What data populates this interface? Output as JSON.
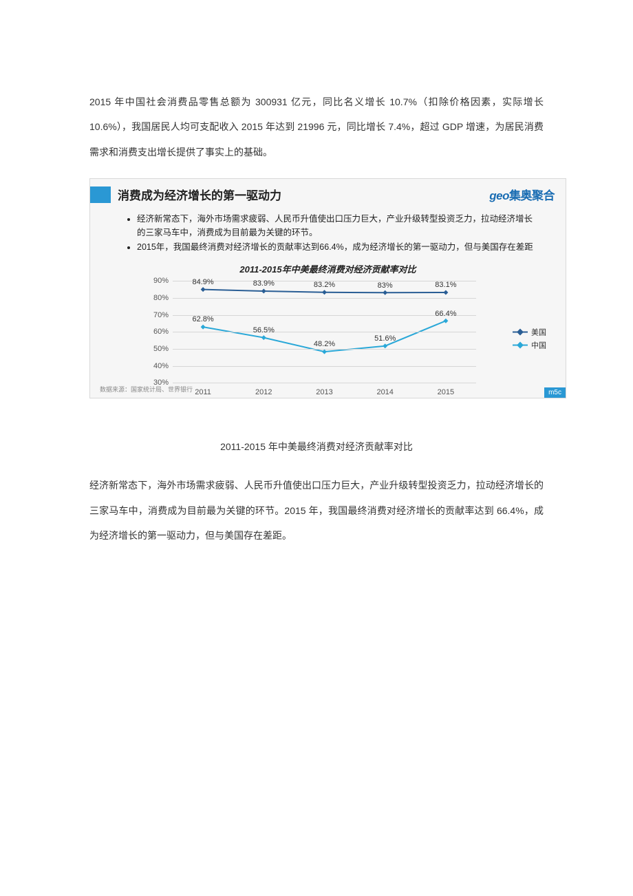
{
  "document": {
    "paragraph1": "2015 年中国社会消费品零售总额为 300931 亿元，同比名义增长 10.7%（扣除价格因素，实际增长 10.6%），我国居民人均可支配收入 2015 年达到 21996 元，同比增长 7.4%，超过 GDP 增速，为居民消费需求和消费支出增长提供了事实上的基础。",
    "figure_caption": "2011-2015 年中美最终消费对经济贡献率对比",
    "paragraph2": "经济新常态下，海外市场需求疲弱、人民币升值使出口压力巨大，产业升级转型投资乏力，拉动经济增长的三家马车中，消费成为目前最为关键的环节。2015 年，我国最终消费对经济增长的贡献率达到 66.4%，成为经济增长的第一驱动力，但与美国存在差距。"
  },
  "infographic": {
    "title": "消费成为经济增长的第一驱动力",
    "logo_prefix": "geo",
    "logo_text": "集奥聚合",
    "bullet1": "经济新常态下，海外市场需求疲弱、人民币升值使出口压力巨大，产业升级转型投资乏力，拉动经济增长的三家马车中，消费成为目前最为关键的环节。",
    "bullet2": "2015年，我国最终消费对经济增长的贡献率达到66.4%，成为经济增长的第一驱动力，但与美国存在差距",
    "chart_title": "2011-2015年中美最终消费对经济贡献率对比",
    "data_source": "数据来源：国家统计局、世界银行",
    "watermark": "m5c",
    "chart": {
      "type": "line",
      "categories": [
        "2011",
        "2012",
        "2013",
        "2014",
        "2015"
      ],
      "series": [
        {
          "name": "美国",
          "values": [
            84.9,
            83.9,
            83.2,
            83.0,
            83.1
          ],
          "color": "#2a5e95",
          "marker": "diamond"
        },
        {
          "name": "中国",
          "values": [
            62.8,
            56.5,
            48.2,
            51.6,
            66.4
          ],
          "color": "#2aa8d8",
          "marker": "diamond"
        }
      ],
      "ylim": [
        30,
        90
      ],
      "ytick_step": 10,
      "ytick_suffix": "%",
      "line_width": 2,
      "marker_size": 7,
      "grid_color": "#d6d6d6",
      "background_color": "#f6f6f6",
      "label_fontsize": 11,
      "show_data_labels": true,
      "legend_position": "right"
    }
  }
}
